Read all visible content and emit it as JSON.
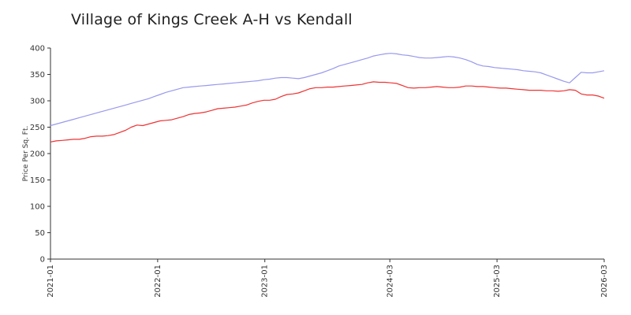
{
  "chart_data": {
    "type": "line",
    "title": "Village of Kings Creek A-H vs Kendall",
    "xlabel": "",
    "ylabel": "Price Per Sq. Ft.",
    "ylim": [
      0,
      400
    ],
    "y_ticks": [
      "0",
      "50",
      "100",
      "150",
      "200",
      "250",
      "300",
      "350",
      "400"
    ],
    "x_ticks": [
      "2021-01",
      "2022-01",
      "2023-01",
      "2024-03",
      "2025-03",
      "2026-03"
    ],
    "x_tick_months": [
      0,
      12,
      24,
      38,
      50,
      62
    ],
    "x_range_months": [
      0,
      62
    ],
    "grid": false,
    "legend": "none",
    "series": [
      {
        "color": "#9999ee",
        "values": [
          253,
          256,
          259,
          262,
          265,
          268,
          271,
          274,
          277,
          280,
          283,
          286,
          289,
          292,
          295,
          298,
          301,
          304,
          308,
          312,
          316,
          319,
          322,
          325,
          326,
          327,
          328,
          329,
          330,
          331,
          332,
          333,
          334,
          335,
          336,
          337,
          338,
          340,
          341,
          343,
          344,
          344,
          343,
          342,
          344,
          347,
          350,
          353,
          357,
          361,
          366,
          369,
          372,
          375,
          378,
          381,
          385,
          387,
          389,
          390,
          389,
          387,
          386,
          384,
          382,
          381,
          381,
          382,
          383,
          384,
          383,
          381,
          378,
          374,
          369,
          366,
          365,
          363,
          362,
          361,
          360,
          359,
          357,
          356,
          355,
          353,
          349,
          345,
          341,
          337,
          334,
          344,
          354,
          353,
          353,
          355,
          357
        ]
      },
      {
        "color": "#ee3333",
        "values": [
          222,
          224,
          225,
          226,
          227,
          227,
          229,
          232,
          233,
          233,
          234,
          236,
          240,
          244,
          250,
          254,
          253,
          256,
          259,
          262,
          263,
          264,
          267,
          270,
          274,
          276,
          277,
          279,
          282,
          285,
          286,
          287,
          288,
          290,
          292,
          296,
          299,
          301,
          301,
          303,
          308,
          312,
          313,
          315,
          319,
          323,
          325,
          325,
          326,
          326,
          327,
          328,
          329,
          330,
          331,
          334,
          336,
          335,
          335,
          334,
          333,
          329,
          325,
          324,
          325,
          325,
          326,
          327,
          326,
          325,
          325,
          326,
          328,
          328,
          327,
          327,
          326,
          325,
          324,
          324,
          323,
          322,
          321,
          320,
          320,
          320,
          319,
          319,
          318,
          319,
          321,
          320,
          313,
          311,
          311,
          309,
          305
        ]
      }
    ]
  }
}
